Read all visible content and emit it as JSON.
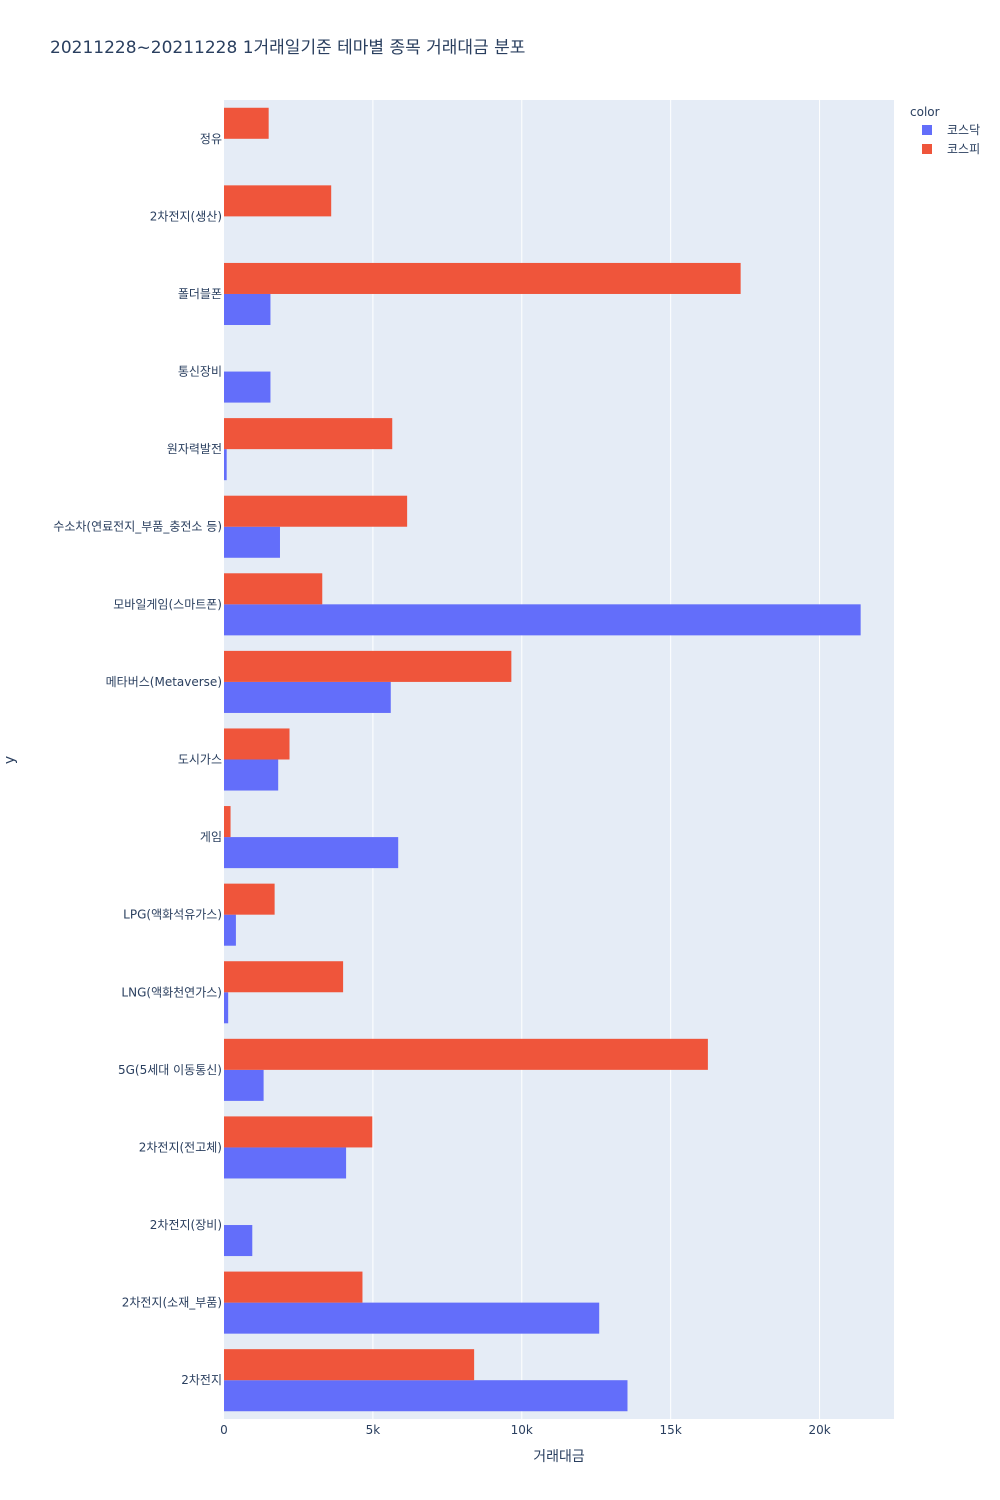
{
  "chart_data": {
    "type": "bar",
    "orientation": "horizontal",
    "barmode": "group",
    "title": "20211228~20211228 1거래일기준 테마별 종목 거래대금 분포",
    "xlabel": "거래대금",
    "ylabel": "y",
    "xlim": [
      0,
      22500
    ],
    "x_ticks": [
      {
        "value": 0,
        "label": "0"
      },
      {
        "value": 5000,
        "label": "5k"
      },
      {
        "value": 10000,
        "label": "10k"
      },
      {
        "value": 15000,
        "label": "15k"
      },
      {
        "value": 20000,
        "label": "20k"
      }
    ],
    "categories": [
      "정유",
      "2차전지(생산)",
      "폴더블폰",
      "통신장비",
      "원자력발전",
      "수소차(연료전지_부품_충전소 등)",
      "모바일게임(스마트폰)",
      "메타버스(Metaverse)",
      "도시가스",
      "게임",
      "LPG(액화석유가스)",
      "LNG(액화천연가스)",
      "5G(5세대 이동통신)",
      "2차전지(전고체)",
      "2차전지(장비)",
      "2차전지(소재_부품)",
      "2차전지"
    ],
    "series": [
      {
        "name": "코스닥",
        "color": "#636efa",
        "values": [
          null,
          null,
          1560,
          1560,
          90,
          1880,
          21380,
          5600,
          1820,
          5850,
          400,
          140,
          1330,
          4100,
          950,
          12600,
          13550
        ]
      },
      {
        "name": "코스피",
        "color": "#ef553b",
        "values": [
          1500,
          3600,
          17350,
          null,
          5650,
          6150,
          3300,
          9650,
          2200,
          220,
          1700,
          4000,
          16250,
          4980,
          null,
          4650,
          8400
        ]
      }
    ],
    "legend": {
      "title": "color",
      "position": "top-right"
    },
    "grid": true,
    "background": "#e5ecf6"
  }
}
